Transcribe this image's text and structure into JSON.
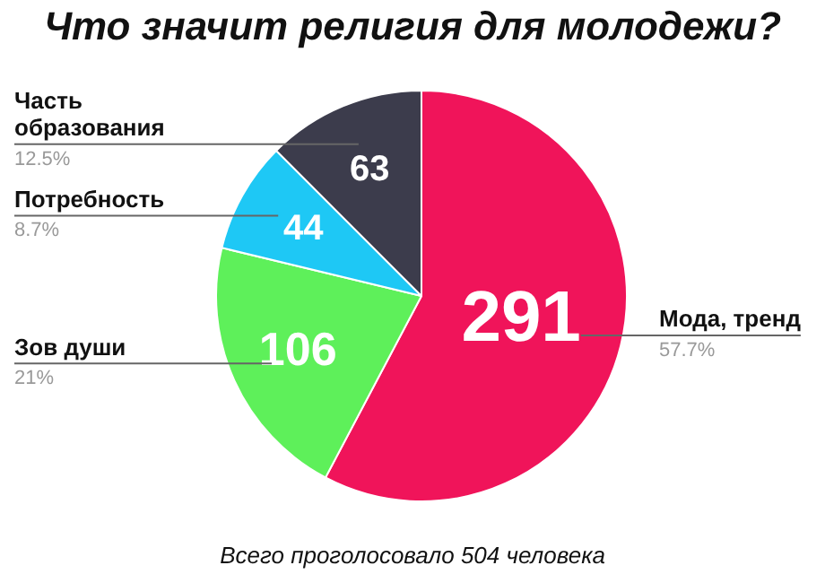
{
  "chart_data": {
    "type": "pie",
    "title": "Что значит религия для молодежи?",
    "categories": [
      "Мода, тренд",
      "Зов души",
      "Потребность",
      "Часть образования"
    ],
    "values": [
      291,
      106,
      44,
      63
    ],
    "colors": [
      "#f0145a",
      "#5ef05a",
      "#1ec8f5",
      "#3c3c4c"
    ],
    "value_labels": [
      "291",
      "106",
      "44",
      "63"
    ],
    "annotations": [
      {
        "text": "57.7%",
        "x": "Мода, тренд"
      },
      {
        "text": "21%",
        "x": "Зов души"
      },
      {
        "text": "8.7%",
        "x": "Потребность"
      },
      {
        "text": "12.5%",
        "x": "Часть образования"
      },
      "Всего проголосовало 504 человека"
    ],
    "legend": false
  }
}
